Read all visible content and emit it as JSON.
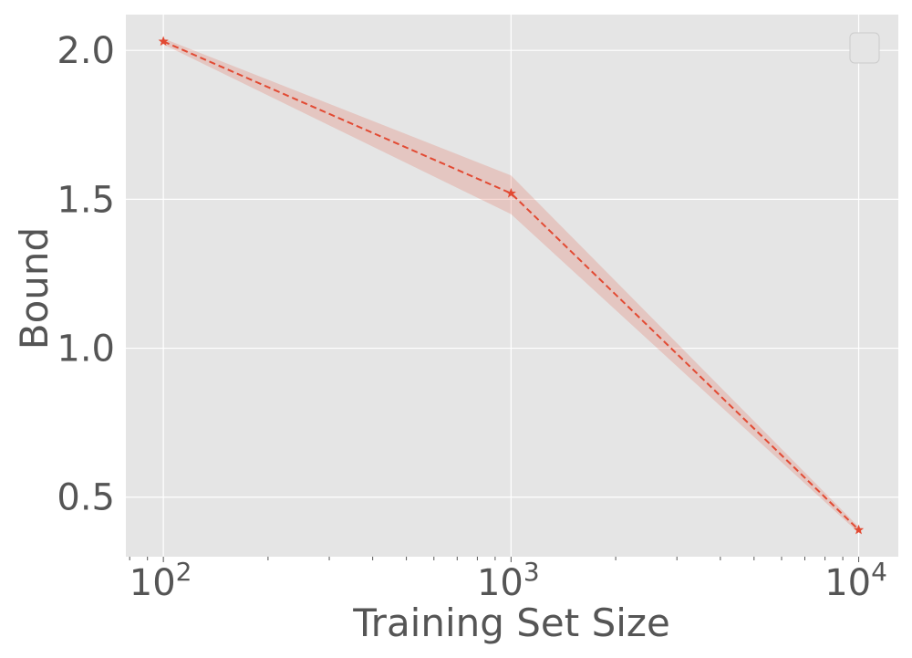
{
  "chart_data": {
    "type": "line",
    "title": "",
    "xlabel": "Training Set Size",
    "ylabel": "Bound",
    "xscale": "log",
    "xlim": [
      78,
      13000
    ],
    "ylim": [
      0.3,
      2.12
    ],
    "grid": true,
    "background": "#e5e5e5",
    "legend": {
      "placement": "top-right",
      "entries": []
    },
    "x_ticks": [
      {
        "value": 100,
        "base": "10",
        "exp": "2"
      },
      {
        "value": 1000,
        "base": "10",
        "exp": "3"
      },
      {
        "value": 10000,
        "base": "10",
        "exp": "4"
      }
    ],
    "y_ticks": [
      {
        "value": 0.5,
        "label": "0.5"
      },
      {
        "value": 1.0,
        "label": "1.0"
      },
      {
        "value": 1.5,
        "label": "1.5"
      },
      {
        "value": 2.0,
        "label": "2.0"
      }
    ],
    "series": [
      {
        "color": "#e24a33",
        "line_style": "dashed",
        "marker": "star",
        "x": [
          100,
          1000,
          10000
        ],
        "y": [
          2.03,
          1.52,
          0.39
        ],
        "band_lower": [
          2.02,
          1.45,
          0.38
        ],
        "band_upper": [
          2.04,
          1.58,
          0.4
        ]
      }
    ]
  }
}
